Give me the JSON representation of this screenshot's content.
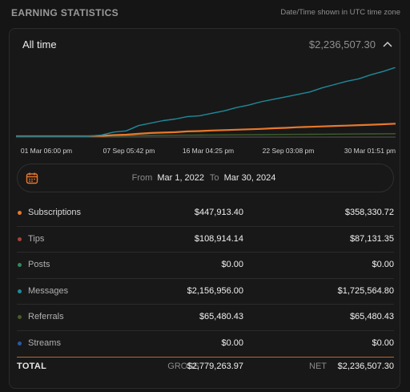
{
  "header": {
    "title": "EARNING STATISTICS",
    "timezone_note": "Date/Time shown in UTC time zone"
  },
  "summary": {
    "period": "All time",
    "total": "$2,236,507.30"
  },
  "chart_data": {
    "type": "line",
    "x_ticks": [
      "01 Mar 06:00 pm",
      "07 Sep 05:42 pm",
      "16 Mar 04:25 pm",
      "22 Sep 03:08 pm",
      "30 Mar 01:51 pm"
    ],
    "grid": false,
    "series": [
      {
        "color": "#1f8a9a",
        "values": [
          0,
          0,
          0,
          0,
          0,
          0,
          0.3,
          1.6,
          5.2,
          6.5,
          13,
          16,
          19,
          21,
          24,
          25,
          28,
          31,
          35,
          38,
          42,
          45,
          48,
          51,
          54,
          59,
          63,
          67,
          70,
          75,
          79,
          84
        ]
      },
      {
        "color": "#e8782c",
        "values": [
          0,
          0,
          0,
          0,
          0,
          0,
          0,
          0.5,
          1.5,
          2,
          3,
          4,
          4.5,
          5,
          6,
          6.3,
          7,
          7.5,
          8,
          8.5,
          9,
          9.8,
          10.3,
          11,
          11.5,
          12,
          12.6,
          13,
          13.6,
          14.1,
          14.7,
          15.3
        ]
      },
      {
        "color": "#3f5f2a",
        "values": [
          0,
          0,
          0,
          0,
          0,
          0,
          0,
          0.2,
          0.4,
          0.6,
          0.8,
          1,
          1.2,
          1.3,
          1.4,
          1.5,
          1.6,
          1.7,
          1.8,
          1.9,
          2,
          2.1,
          2.2,
          2.3,
          2.4,
          2.5,
          2.6,
          2.7,
          2.8,
          2.9,
          3,
          3.1
        ]
      }
    ]
  },
  "date_range": {
    "from_label": "From",
    "from_value": "Mar 1, 2022",
    "to_label": "To",
    "to_value": "Mar 30, 2024"
  },
  "rows": [
    {
      "name": "Subscriptions",
      "gross": "$447,913.40",
      "net": "$358,330.72",
      "color": "#e8782c"
    },
    {
      "name": "Tips",
      "gross": "$108,914.14",
      "net": "$87,131.35",
      "color": "#a5423a"
    },
    {
      "name": "Posts",
      "gross": "$0.00",
      "net": "$0.00",
      "color": "#2f8a5a"
    },
    {
      "name": "Messages",
      "gross": "$2,156,956.00",
      "net": "$1,725,564.80",
      "color": "#1f8a9a"
    },
    {
      "name": "Referrals",
      "gross": "$65,480.43",
      "net": "$65,480.43",
      "color": "#4a5a2a"
    },
    {
      "name": "Streams",
      "gross": "$0.00",
      "net": "$0.00",
      "color": "#2a5aa0"
    }
  ],
  "totals": {
    "label": "TOTAL",
    "gross_label": "GROSS",
    "gross_value": "$2,779,263.97",
    "net_label": "NET",
    "net_value": "$2,236,507.30"
  }
}
